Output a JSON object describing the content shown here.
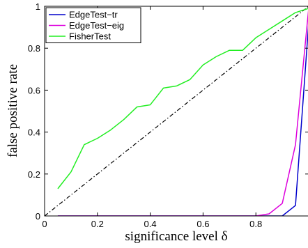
{
  "chart_data": {
    "type": "line",
    "title": "",
    "xlabel": "significance level δ",
    "ylabel": "false positive rate",
    "xlim": [
      0,
      1
    ],
    "ylim": [
      0,
      1
    ],
    "xticks": [
      "0",
      "0.2",
      "0.4",
      "0.6",
      "0.8"
    ],
    "yticks": [
      "0",
      "0.2",
      "0.4",
      "0.6",
      "0.8",
      "1"
    ],
    "grid": false,
    "legend": "top-left",
    "reference_line": {
      "style": "dash-dot",
      "color": "#000000",
      "from": [
        0,
        0
      ],
      "to": [
        1,
        1
      ]
    },
    "series": [
      {
        "name": "EdgeTest−tr",
        "color": "#0000cc",
        "x": [
          0.05,
          0.1,
          0.15,
          0.2,
          0.25,
          0.3,
          0.35,
          0.4,
          0.45,
          0.5,
          0.55,
          0.6,
          0.65,
          0.7,
          0.75,
          0.8,
          0.85,
          0.9,
          0.95,
          1.0
        ],
        "y": [
          0,
          0,
          0,
          0,
          0,
          0,
          0,
          0,
          0,
          0,
          0,
          0,
          0,
          0,
          0,
          0,
          0,
          0,
          0.05,
          0.92
        ]
      },
      {
        "name": "EdgeTest−eig",
        "color": "#dd00dd",
        "x": [
          0.05,
          0.1,
          0.15,
          0.2,
          0.25,
          0.3,
          0.35,
          0.4,
          0.45,
          0.5,
          0.55,
          0.6,
          0.65,
          0.7,
          0.75,
          0.8,
          0.85,
          0.9,
          0.95,
          1.0
        ],
        "y": [
          0,
          0,
          0,
          0,
          0,
          0,
          0,
          0,
          0,
          0,
          0,
          0,
          0,
          0,
          0,
          0,
          0.01,
          0.06,
          0.34,
          0.99
        ]
      },
      {
        "name": "FisherTest",
        "color": "#22ee22",
        "x": [
          0.05,
          0.1,
          0.15,
          0.2,
          0.25,
          0.3,
          0.35,
          0.4,
          0.45,
          0.5,
          0.55,
          0.6,
          0.65,
          0.7,
          0.75,
          0.8,
          0.85,
          0.9,
          0.95,
          1.0
        ],
        "y": [
          0.13,
          0.21,
          0.34,
          0.37,
          0.41,
          0.46,
          0.52,
          0.53,
          0.61,
          0.62,
          0.65,
          0.72,
          0.76,
          0.79,
          0.79,
          0.85,
          0.89,
          0.93,
          0.97,
          0.99
        ]
      }
    ]
  }
}
